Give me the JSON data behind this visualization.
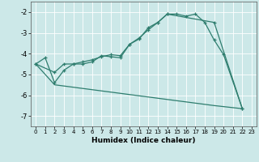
{
  "xlabel": "Humidex (Indice chaleur)",
  "bg_color": "#cce8e8",
  "grid_color": "#ffffff",
  "line_color": "#2e7d6e",
  "xlim": [
    -0.5,
    23.5
  ],
  "ylim": [
    -7.5,
    -1.5
  ],
  "yticks": [
    -7,
    -6,
    -5,
    -4,
    -3,
    -2
  ],
  "xticks": [
    0,
    1,
    2,
    3,
    4,
    5,
    6,
    7,
    8,
    9,
    10,
    11,
    12,
    13,
    14,
    15,
    16,
    17,
    18,
    19,
    20,
    21,
    22,
    23
  ],
  "line1_x": [
    0,
    1,
    2,
    3,
    4,
    5,
    6,
    7,
    8,
    9,
    10,
    11,
    12,
    13,
    14,
    15,
    16,
    17,
    18,
    19,
    20,
    22
  ],
  "line1_y": [
    -4.5,
    -4.2,
    -5.4,
    -4.8,
    -4.5,
    -4.5,
    -4.4,
    -4.1,
    -4.15,
    -4.2,
    -3.55,
    -3.3,
    -2.75,
    -2.5,
    -2.1,
    -2.1,
    -2.2,
    -2.1,
    -2.5,
    -3.35,
    -4.05,
    -6.65
  ],
  "line2_x": [
    0,
    2,
    3,
    4,
    5,
    6,
    7,
    8,
    9,
    10,
    11,
    12,
    13,
    14,
    19,
    22
  ],
  "line2_y": [
    -4.5,
    -4.9,
    -4.5,
    -4.5,
    -4.4,
    -4.3,
    -4.15,
    -4.05,
    -4.1,
    -3.55,
    -3.25,
    -2.85,
    -2.5,
    -2.1,
    -2.5,
    -6.65
  ],
  "line3_x": [
    0,
    2,
    19,
    22
  ],
  "line3_y": [
    -4.5,
    -5.5,
    -6.5,
    -6.65
  ]
}
